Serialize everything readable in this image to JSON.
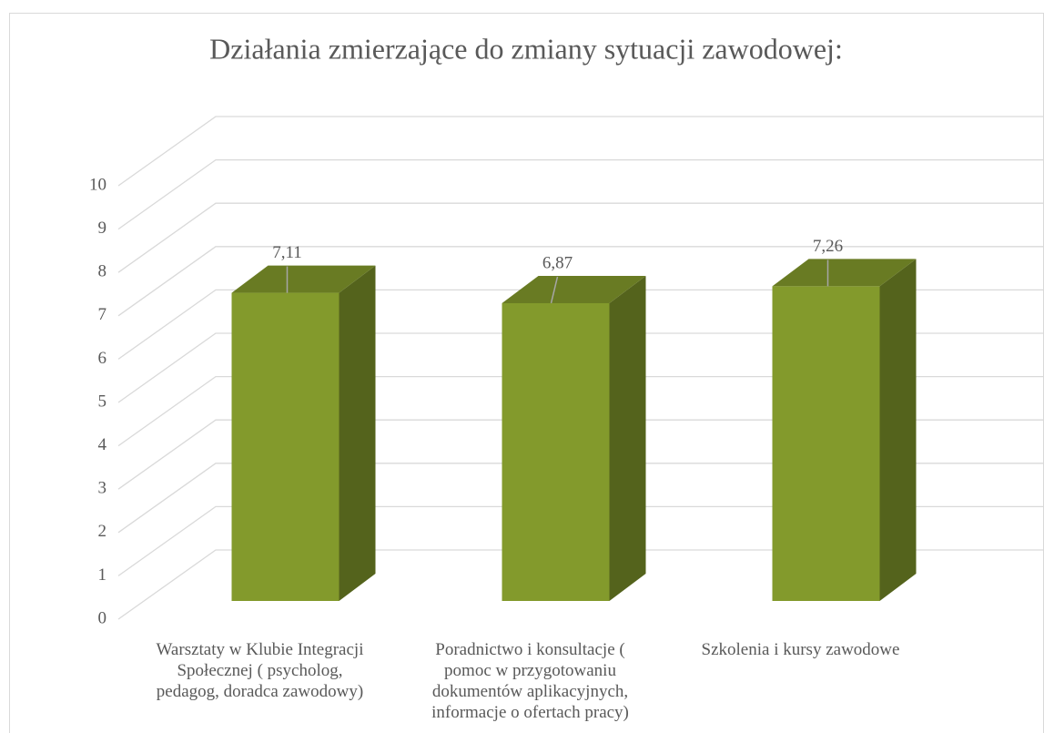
{
  "chart_data": {
    "type": "bar3d",
    "title": "Działania zmierzające do zmiany sytuacji zawodowej:",
    "categories": [
      "Warsztaty w Klubie Integracji Społecznej ( psycholog, pedagog, doradca zawodowy)",
      "Poradnictwo i konsultacje ( pomoc w przygotowaniu dokumentów aplikacyjnych, informacje o ofertach pracy)",
      "Szkolenia i kursy zawodowe"
    ],
    "values": [
      7.11,
      6.87,
      7.26
    ],
    "value_labels": [
      "7,11",
      "6,87",
      "7,26"
    ],
    "color": "#839a2c",
    "ylim": [
      0,
      10
    ],
    "yticks": [
      0,
      1,
      2,
      3,
      4,
      5,
      6,
      7,
      8,
      9,
      10
    ],
    "grid": true
  }
}
